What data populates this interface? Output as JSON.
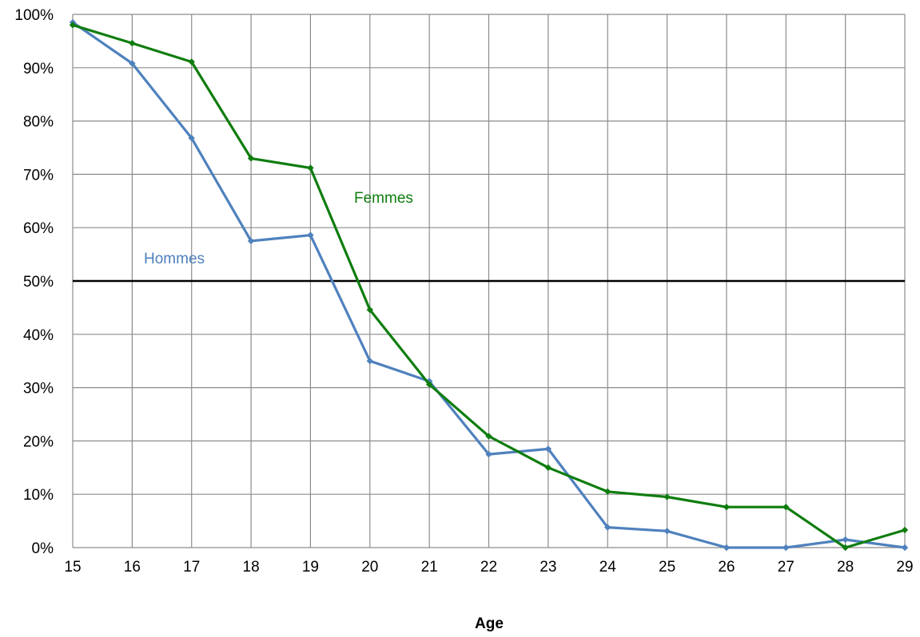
{
  "chart_data": {
    "type": "line",
    "title": "",
    "xlabel": "Age",
    "ylabel": "",
    "x": [
      15,
      16,
      17,
      18,
      19,
      20,
      21,
      22,
      23,
      24,
      25,
      26,
      27,
      28,
      29
    ],
    "y_ticks": [
      "0%",
      "10%",
      "20%",
      "30%",
      "40%",
      "50%",
      "60%",
      "70%",
      "80%",
      "90%",
      "100%"
    ],
    "ylim": [
      0,
      100
    ],
    "grid": true,
    "reference_line": 50,
    "series": [
      {
        "name": "Hommes",
        "color": "#4f81bd",
        "values": [
          98.5,
          90.8,
          76.8,
          57.5,
          58.6,
          35.0,
          31.2,
          17.5,
          18.5,
          3.8,
          3.1,
          0.0,
          0.0,
          1.5,
          0.0
        ]
      },
      {
        "name": "Femmes",
        "color": "#0f7d0f",
        "values": [
          98.0,
          94.6,
          91.1,
          73.0,
          71.2,
          44.6,
          30.6,
          20.9,
          15.0,
          10.5,
          9.5,
          7.6,
          7.6,
          0.0,
          3.3
        ]
      }
    ]
  }
}
